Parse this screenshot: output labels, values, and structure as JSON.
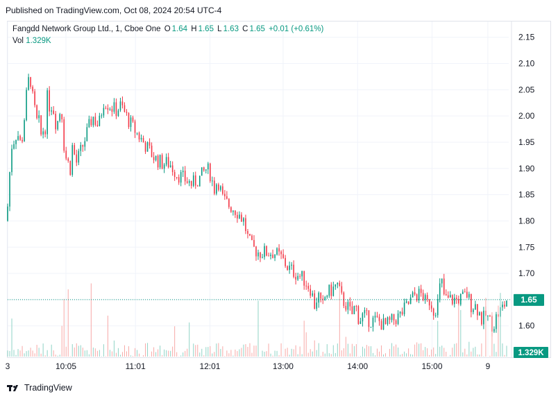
{
  "header": {
    "published": "Published on TradingView.com, Oct 08, 2024 20:54 UTC-4"
  },
  "legend": {
    "symbol": "Fangdd Network Group Ltd., 1, Cboe One",
    "o_label": "O",
    "o_value": "1.64",
    "h_label": "H",
    "h_value": "1.65",
    "l_label": "L",
    "l_value": "1.63",
    "c_label": "C",
    "c_value": "1.65",
    "change": "+0.01 (+0.61%)",
    "vol_label": "Vol",
    "vol_value": "1.329K"
  },
  "brand": {
    "name": "TradingView"
  },
  "colors": {
    "up": "#089981",
    "down": "#f23645",
    "up_vol": "#8fd3c6",
    "down_vol": "#f7a9a7"
  },
  "chart_data": {
    "type": "candlestick",
    "y_ticks": [
      "2.15",
      "2.10",
      "2.05",
      "2.00",
      "1.95",
      "1.90",
      "1.85",
      "1.80",
      "1.75",
      "1.70",
      "1.65",
      "1.60"
    ],
    "ylim": [
      1.56,
      2.18
    ],
    "x_ticks": [
      {
        "label": "3",
        "t": 9.3
      },
      {
        "label": "10:05",
        "t": 10.083
      },
      {
        "label": "11:01",
        "t": 11.017
      },
      {
        "label": "12:01",
        "t": 12.017
      },
      {
        "label": "13:00",
        "t": 13.0
      },
      {
        "label": "14:00",
        "t": 14.0
      },
      {
        "label": "15:00",
        "t": 15.0
      },
      {
        "label": "9",
        "t": 15.75
      }
    ],
    "xlim": [
      9.3,
      16.03
    ],
    "current_price": "1.65",
    "current_volume": "1.329K",
    "grid": true,
    "price_path": [
      [
        9.3,
        1.8
      ],
      [
        9.33,
        1.83
      ],
      [
        9.38,
        1.95
      ],
      [
        9.45,
        1.98
      ],
      [
        9.5,
        1.94
      ],
      [
        9.55,
        2.0
      ],
      [
        9.6,
        2.04
      ],
      [
        9.63,
        2.1
      ],
      [
        9.66,
        2.02
      ],
      [
        9.72,
        1.98
      ],
      [
        9.78,
        1.96
      ],
      [
        9.85,
        2.01
      ],
      [
        9.9,
        2.04
      ],
      [
        9.95,
        2.02
      ],
      [
        10.0,
        1.99
      ],
      [
        10.05,
        2.03
      ],
      [
        10.1,
        1.93
      ],
      [
        10.15,
        1.9
      ],
      [
        10.2,
        1.94
      ],
      [
        10.25,
        1.91
      ],
      [
        10.33,
        1.94
      ],
      [
        10.4,
        1.97
      ],
      [
        10.47,
        2.0
      ],
      [
        10.55,
        1.98
      ],
      [
        10.62,
        2.03
      ],
      [
        10.7,
        2.02
      ],
      [
        10.78,
        2.01
      ],
      [
        10.85,
        2.02
      ],
      [
        10.92,
        2.0
      ],
      [
        11.0,
        1.98
      ],
      [
        11.1,
        1.96
      ],
      [
        11.2,
        1.94
      ],
      [
        11.3,
        1.92
      ],
      [
        11.4,
        1.91
      ],
      [
        11.5,
        1.91
      ],
      [
        11.6,
        1.89
      ],
      [
        11.7,
        1.88
      ],
      [
        11.8,
        1.87
      ],
      [
        11.9,
        1.88
      ],
      [
        12.0,
        1.9
      ],
      [
        12.05,
        1.89
      ],
      [
        12.1,
        1.86
      ],
      [
        12.15,
        1.88
      ],
      [
        12.22,
        1.84
      ],
      [
        12.3,
        1.83
      ],
      [
        12.4,
        1.82
      ],
      [
        12.5,
        1.8
      ],
      [
        12.55,
        1.77
      ],
      [
        12.6,
        1.75
      ],
      [
        12.7,
        1.74
      ],
      [
        12.8,
        1.74
      ],
      [
        12.9,
        1.74
      ],
      [
        13.0,
        1.73
      ],
      [
        13.1,
        1.71
      ],
      [
        13.2,
        1.7
      ],
      [
        13.3,
        1.69
      ],
      [
        13.4,
        1.67
      ],
      [
        13.45,
        1.64
      ],
      [
        13.5,
        1.66
      ],
      [
        13.55,
        1.63
      ],
      [
        13.6,
        1.66
      ],
      [
        13.7,
        1.67
      ],
      [
        13.75,
        1.68
      ],
      [
        13.82,
        1.65
      ],
      [
        13.88,
        1.64
      ],
      [
        13.95,
        1.62
      ],
      [
        14.0,
        1.64
      ],
      [
        14.05,
        1.61
      ],
      [
        14.1,
        1.62
      ],
      [
        14.2,
        1.61
      ],
      [
        14.3,
        1.61
      ],
      [
        14.4,
        1.6
      ],
      [
        14.5,
        1.61
      ],
      [
        14.6,
        1.62
      ],
      [
        14.7,
        1.64
      ],
      [
        14.8,
        1.66
      ],
      [
        14.9,
        1.66
      ],
      [
        14.95,
        1.64
      ],
      [
        15.0,
        1.65
      ],
      [
        15.05,
        1.63
      ],
      [
        15.1,
        1.64
      ],
      [
        15.15,
        1.69
      ],
      [
        15.2,
        1.65
      ],
      [
        15.3,
        1.65
      ],
      [
        15.4,
        1.65
      ],
      [
        15.5,
        1.66
      ],
      [
        15.55,
        1.64
      ],
      [
        15.6,
        1.64
      ],
      [
        15.65,
        1.63
      ],
      [
        15.7,
        1.61
      ],
      [
        15.75,
        1.62
      ],
      [
        15.8,
        1.61
      ],
      [
        15.85,
        1.6
      ],
      [
        15.9,
        1.62
      ],
      [
        15.95,
        1.63
      ],
      [
        16.0,
        1.64
      ],
      [
        16.03,
        1.65
      ]
    ],
    "volume_max": 30
  }
}
